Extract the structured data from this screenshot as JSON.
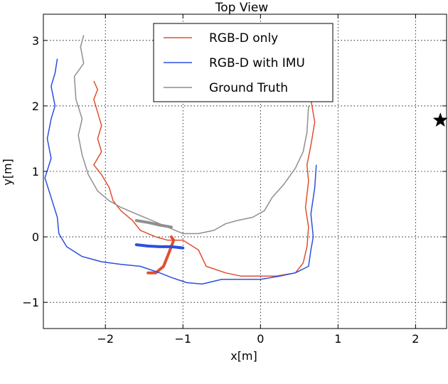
{
  "chart_data": {
    "type": "line",
    "title": "Top View",
    "xlabel": "x[m]",
    "ylabel": "y[m]",
    "xlim": [
      -2.8,
      2.4
    ],
    "ylim": [
      -1.4,
      3.4
    ],
    "xticks": [
      -2,
      -1,
      0,
      1,
      2
    ],
    "yticks": [
      -1,
      0,
      1,
      2,
      3
    ],
    "xtick_labels": [
      "−2",
      "−1",
      "0",
      "1",
      "2"
    ],
    "ytick_labels": [
      "−1",
      "0",
      "1",
      "2",
      "3"
    ],
    "grid": true,
    "legend_position": "top-center",
    "markers": [
      {
        "name": "",
        "x": 2.32,
        "y": 1.78,
        "symbol": "star",
        "color": "#000000"
      }
    ],
    "series": [
      {
        "name": "RGB-D only",
        "color": "#e05030",
        "points": [
          [
            -2.15,
            2.38
          ],
          [
            -2.1,
            2.25
          ],
          [
            -2.15,
            2.1
          ],
          [
            -2.1,
            1.9
          ],
          [
            -2.05,
            1.7
          ],
          [
            -2.1,
            1.5
          ],
          [
            -2.05,
            1.3
          ],
          [
            -2.15,
            1.1
          ],
          [
            -2.05,
            0.95
          ],
          [
            -1.95,
            0.75
          ],
          [
            -1.9,
            0.55
          ],
          [
            -1.8,
            0.4
          ],
          [
            -1.65,
            0.25
          ],
          [
            -1.55,
            0.1
          ],
          [
            -1.35,
            0.0
          ],
          [
            -1.2,
            -0.05
          ],
          [
            -1.0,
            -0.05
          ],
          [
            -0.8,
            -0.2
          ],
          [
            -0.7,
            -0.45
          ],
          [
            -0.45,
            -0.55
          ],
          [
            -0.25,
            -0.6
          ],
          [
            -0.05,
            -0.6
          ],
          [
            0.2,
            -0.6
          ],
          [
            0.45,
            -0.55
          ],
          [
            0.55,
            -0.4
          ],
          [
            0.6,
            -0.15
          ],
          [
            0.62,
            0.15
          ],
          [
            0.58,
            0.45
          ],
          [
            0.62,
            0.85
          ],
          [
            0.6,
            1.1
          ],
          [
            0.65,
            1.4
          ],
          [
            0.7,
            1.75
          ],
          [
            0.65,
            2.1
          ]
        ],
        "thick_segment": [
          [
            -1.45,
            -0.55
          ],
          [
            -1.35,
            -0.55
          ],
          [
            -1.25,
            -0.45
          ],
          [
            -1.2,
            -0.3
          ],
          [
            -1.15,
            -0.15
          ],
          [
            -1.12,
            -0.05
          ],
          [
            -1.15,
            0.0
          ]
        ]
      },
      {
        "name": "RGB-D with IMU",
        "color": "#2a4fe0",
        "points": [
          [
            -2.62,
            2.72
          ],
          [
            -2.65,
            2.5
          ],
          [
            -2.7,
            2.3
          ],
          [
            -2.65,
            2.0
          ],
          [
            -2.7,
            1.8
          ],
          [
            -2.75,
            1.5
          ],
          [
            -2.7,
            1.2
          ],
          [
            -2.78,
            0.9
          ],
          [
            -2.7,
            0.6
          ],
          [
            -2.62,
            0.3
          ],
          [
            -2.6,
            0.05
          ],
          [
            -2.5,
            -0.15
          ],
          [
            -2.3,
            -0.3
          ],
          [
            -2.05,
            -0.38
          ],
          [
            -1.8,
            -0.42
          ],
          [
            -1.55,
            -0.45
          ],
          [
            -1.3,
            -0.55
          ],
          [
            -1.15,
            -0.62
          ],
          [
            -0.95,
            -0.7
          ],
          [
            -0.75,
            -0.72
          ],
          [
            -0.5,
            -0.65
          ],
          [
            -0.25,
            -0.65
          ],
          [
            0.0,
            -0.65
          ],
          [
            0.25,
            -0.6
          ],
          [
            0.45,
            -0.55
          ],
          [
            0.62,
            -0.45
          ],
          [
            0.65,
            -0.2
          ],
          [
            0.68,
            0.0
          ],
          [
            0.65,
            0.35
          ],
          [
            0.7,
            0.75
          ],
          [
            0.72,
            1.1
          ]
        ],
        "thick_segment": [
          [
            -1.6,
            -0.12
          ],
          [
            -1.45,
            -0.14
          ],
          [
            -1.3,
            -0.15
          ],
          [
            -1.15,
            -0.15
          ],
          [
            -1.0,
            -0.17
          ]
        ]
      },
      {
        "name": "Ground Truth",
        "color": "#8f8f8f",
        "points": [
          [
            -2.28,
            3.08
          ],
          [
            -2.32,
            2.9
          ],
          [
            -2.28,
            2.65
          ],
          [
            -2.4,
            2.45
          ],
          [
            -2.38,
            2.1
          ],
          [
            -2.3,
            1.8
          ],
          [
            -2.35,
            1.55
          ],
          [
            -2.3,
            1.25
          ],
          [
            -2.22,
            0.95
          ],
          [
            -2.1,
            0.7
          ],
          [
            -1.95,
            0.55
          ],
          [
            -1.8,
            0.45
          ],
          [
            -1.6,
            0.35
          ],
          [
            -1.4,
            0.25
          ],
          [
            -1.2,
            0.15
          ],
          [
            -1.0,
            0.05
          ],
          [
            -0.8,
            0.05
          ],
          [
            -0.6,
            0.1
          ],
          [
            -0.45,
            0.2
          ],
          [
            -0.3,
            0.25
          ],
          [
            -0.1,
            0.3
          ],
          [
            0.05,
            0.4
          ],
          [
            0.15,
            0.6
          ],
          [
            0.3,
            0.8
          ],
          [
            0.45,
            1.05
          ],
          [
            0.55,
            1.3
          ],
          [
            0.6,
            1.6
          ],
          [
            0.62,
            2.0
          ]
        ],
        "thick_segment": [
          [
            -1.6,
            0.25
          ],
          [
            -1.45,
            0.22
          ],
          [
            -1.3,
            0.18
          ],
          [
            -1.15,
            0.15
          ]
        ]
      }
    ]
  }
}
